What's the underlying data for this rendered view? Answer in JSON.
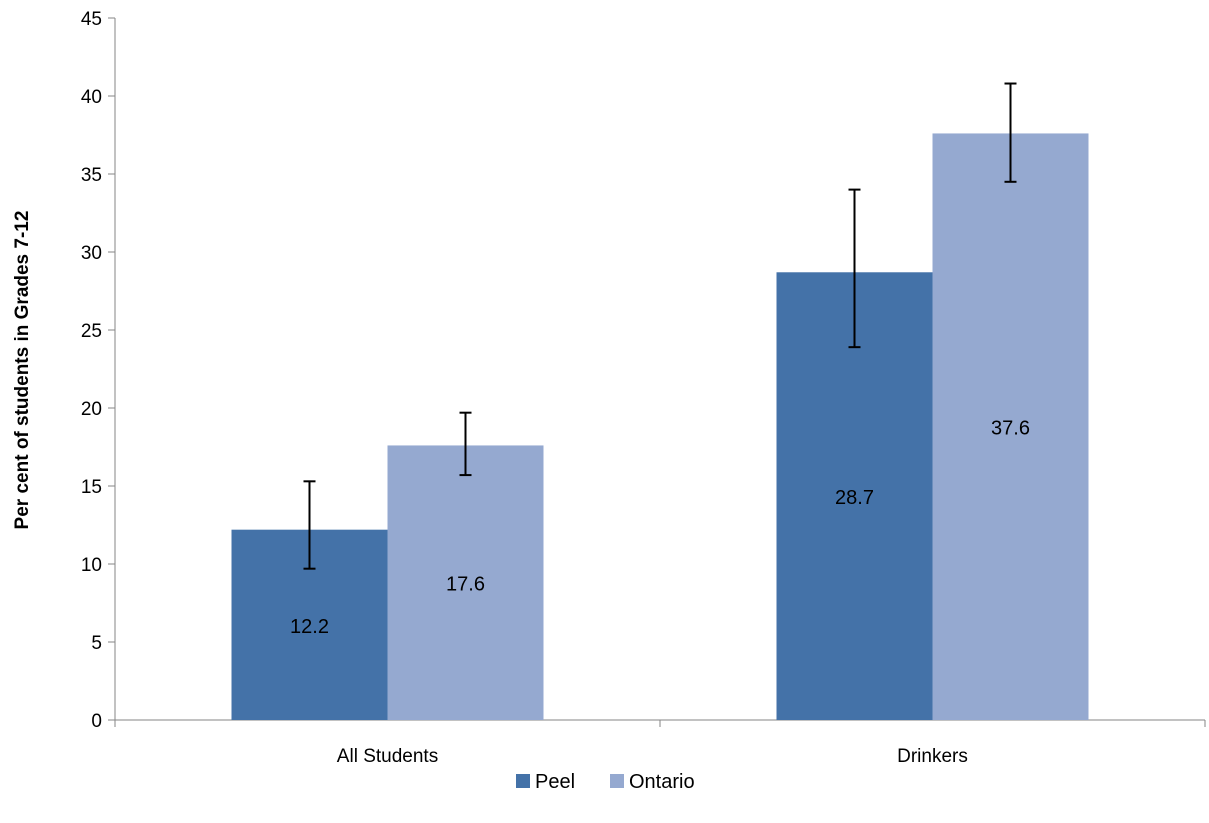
{
  "chart_data": {
    "type": "bar",
    "title": "",
    "xlabel": "",
    "ylabel": "Per cent of students in Grades 7-12",
    "ylim": [
      0,
      45
    ],
    "yticks": [
      0,
      5,
      10,
      15,
      20,
      25,
      30,
      35,
      40,
      45
    ],
    "grid": false,
    "legend_position": "bottom",
    "categories": [
      "All Students",
      "Drinkers"
    ],
    "series": [
      {
        "name": "Peel",
        "color": "#4472A8",
        "values": [
          12.2,
          28.7
        ],
        "error_low": [
          9.7,
          23.9
        ],
        "error_high": [
          15.3,
          34.0
        ]
      },
      {
        "name": "Ontario",
        "color": "#95A9D0",
        "values": [
          17.6,
          37.6
        ],
        "error_low": [
          15.7,
          34.5
        ],
        "error_high": [
          19.7,
          40.8
        ]
      }
    ]
  }
}
